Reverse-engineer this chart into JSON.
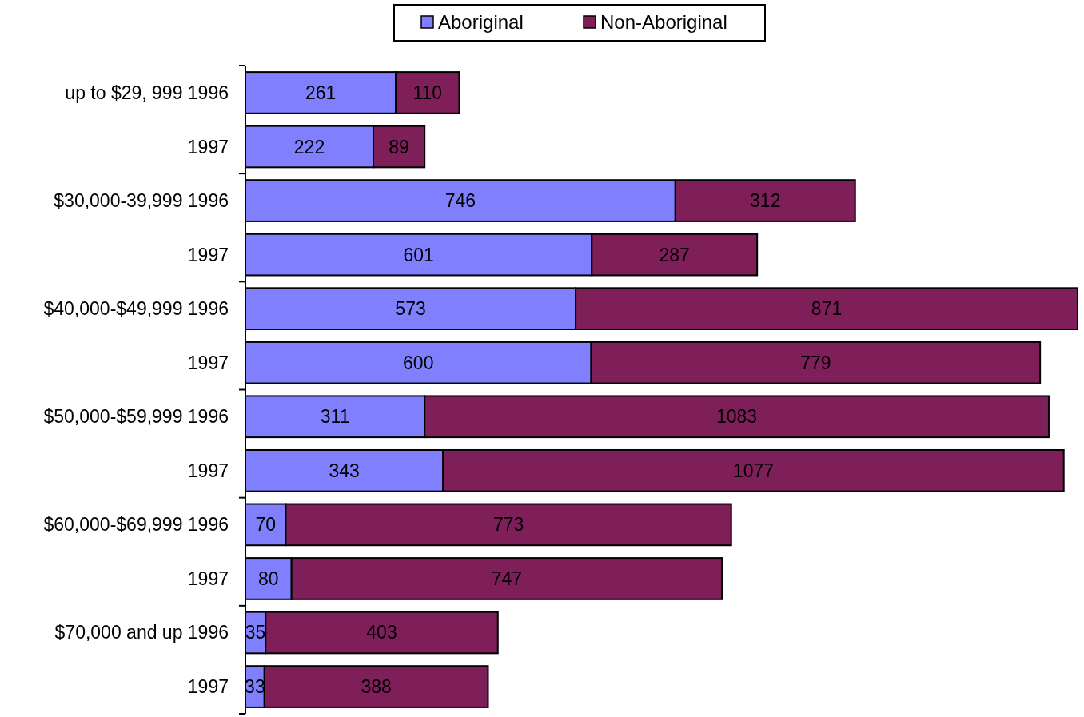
{
  "chart_data": {
    "type": "bar",
    "orientation": "horizontal",
    "stacked": true,
    "data_labels": true,
    "legend": "top",
    "grid": false,
    "categories": [
      "up to $29, 999  1996",
      "1997",
      "$30,000-39,999 1996",
      "1997",
      "$40,000-$49,999 1996",
      "1997",
      "$50,000-$59,999  1996",
      "1997",
      "$60,000-$69,999  1996",
      "1997",
      "$70,000 and up 1996",
      "1997"
    ],
    "series": [
      {
        "name": "Aboriginal",
        "color": "#8080ff",
        "values": [
          261,
          222,
          746,
          601,
          573,
          600,
          311,
          343,
          70,
          80,
          35,
          33
        ]
      },
      {
        "name": "Non-Aboriginal",
        "color": "#7f1f5a",
        "values": [
          110,
          89,
          312,
          287,
          871,
          779,
          1083,
          1077,
          773,
          747,
          403,
          388
        ]
      }
    ]
  }
}
